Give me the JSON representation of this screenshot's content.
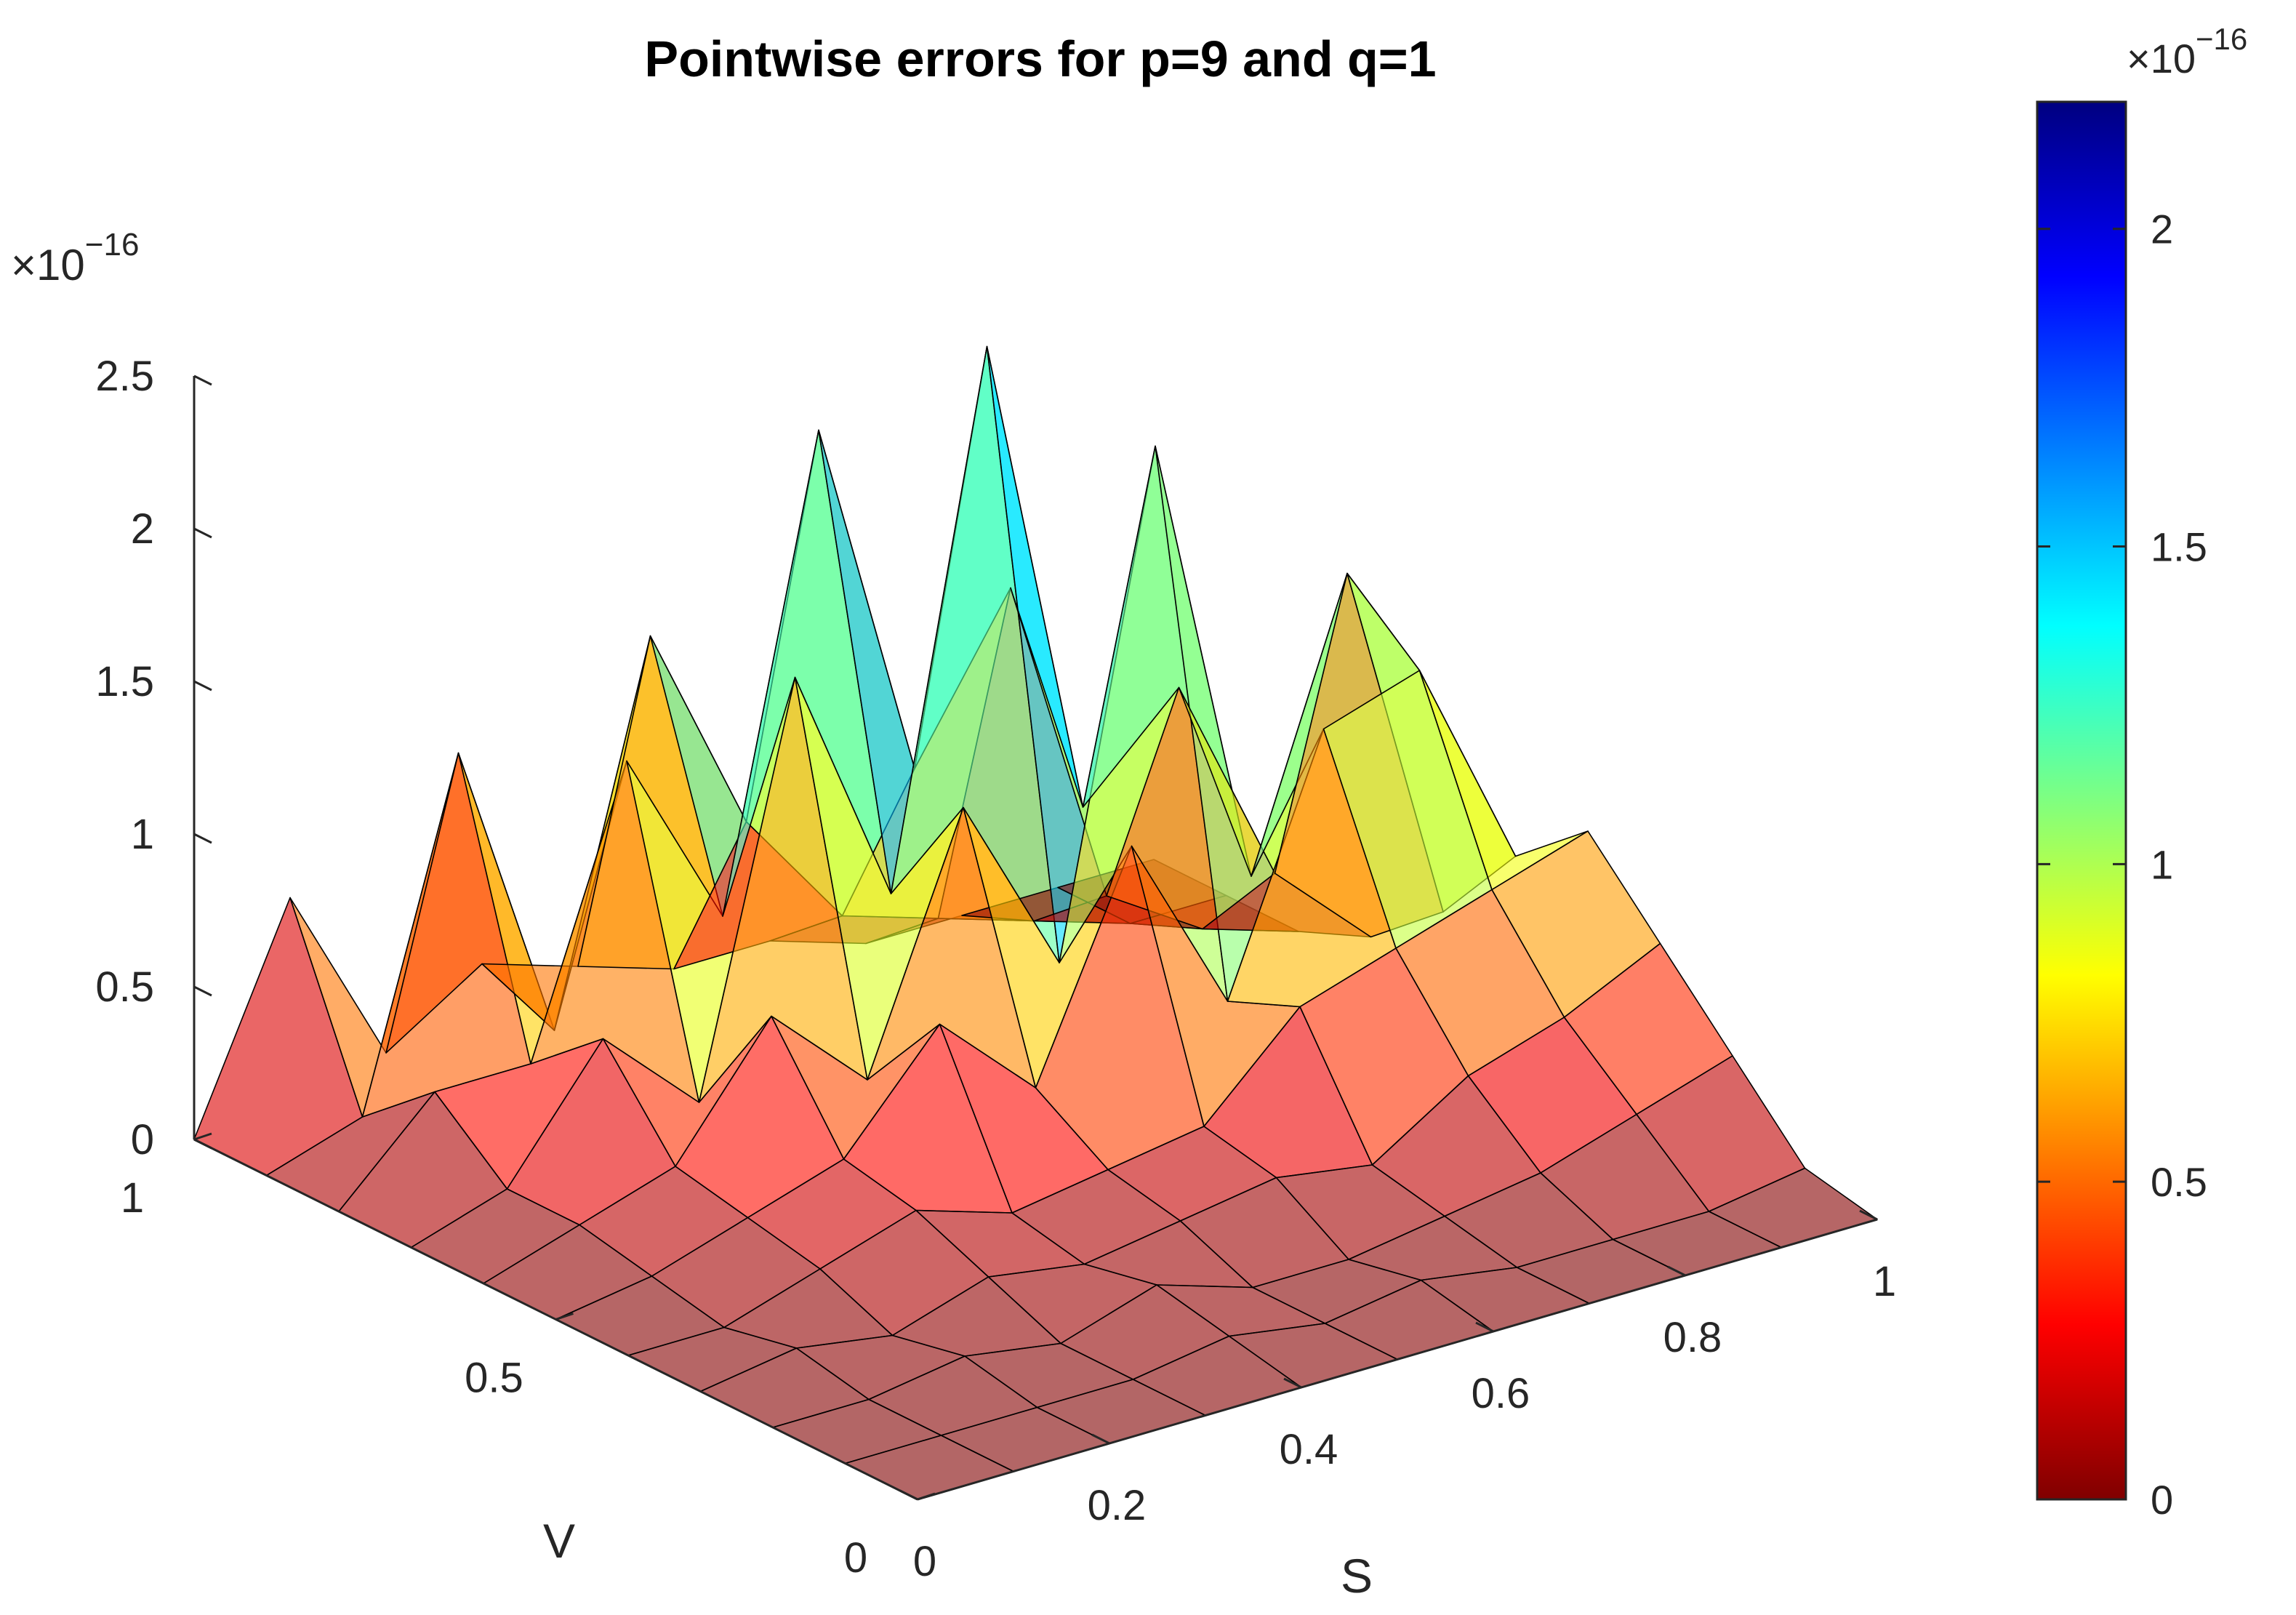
{
  "chart_data": {
    "type": "surface",
    "title": "Pointwise errors for p=9 and q=1",
    "xlabel": "S",
    "ylabel": "V",
    "zlabel": "",
    "z_exponent_label": "×10",
    "z_exponent": "−16",
    "x_ticks": [
      "0",
      "0.2",
      "0.4",
      "0.6",
      "0.8",
      "1"
    ],
    "y_ticks": [
      "0",
      "0.5",
      "1"
    ],
    "z_ticks": [
      "0",
      "0.5",
      "1",
      "1.5",
      "2",
      "2.5"
    ],
    "xlim": [
      0,
      1
    ],
    "ylim": [
      0,
      1
    ],
    "zlim": [
      0,
      2.5
    ],
    "x": [
      0,
      0.1,
      0.2,
      0.3,
      0.4,
      0.5,
      0.6,
      0.7,
      0.8,
      0.9,
      1.0
    ],
    "y": [
      0,
      0.1,
      0.2,
      0.3,
      0.4,
      0.5,
      0.6,
      0.7,
      0.8,
      0.9,
      1.0
    ],
    "z_rows_by_v": [
      [
        0,
        0,
        0,
        0,
        0,
        0,
        0,
        0,
        0,
        0,
        0
      ],
      [
        0,
        0,
        0,
        0,
        0.05,
        0,
        0.05,
        0,
        0,
        0,
        0.05
      ],
      [
        0,
        0,
        0.05,
        0,
        0.1,
        0,
        0,
        0.05,
        0.1,
        0.2,
        0.3
      ],
      [
        0,
        0.05,
        0,
        0.1,
        0.05,
        0.1,
        0.15,
        0.1,
        0.3,
        0.4,
        0.55
      ],
      [
        0,
        0,
        0.1,
        0.2,
        0.1,
        0.15,
        0.2,
        0.5,
        0.6,
        0.7,
        0.8
      ],
      [
        0,
        0.05,
        0.15,
        0.25,
        0.6,
        0.3,
        1.0,
        0.4,
        1.2,
        1.3,
        0.6
      ],
      [
        0,
        0.1,
        0.2,
        0.6,
        0.3,
        1.1,
        0.5,
        2.1,
        0.6,
        1.5,
        0.3
      ],
      [
        0,
        0.1,
        0.5,
        0.2,
        1.5,
        0.7,
        2.4,
        0.8,
        1.1,
        0.4,
        0.1
      ],
      [
        0,
        0.3,
        0.3,
        1.2,
        0.6,
        2.1,
        0.9,
        1.4,
        0.3,
        0.1,
        0
      ],
      [
        0,
        0.1,
        1.2,
        0.2,
        1.4,
        0.7,
        0.3,
        0.2,
        0.1,
        0,
        0
      ],
      [
        0,
        0.7,
        0.1,
        0.3,
        0.2,
        0.1,
        0.1,
        0,
        0,
        0,
        0
      ]
    ],
    "colorbar": {
      "colormap": "jet-reversed",
      "ticks": [
        "0",
        "0.5",
        "1",
        "1.5",
        "2"
      ],
      "range": [
        0,
        2.2
      ],
      "exponent_label": "×10",
      "exponent": "−16"
    },
    "face_alpha": 0.6,
    "grid": false
  }
}
